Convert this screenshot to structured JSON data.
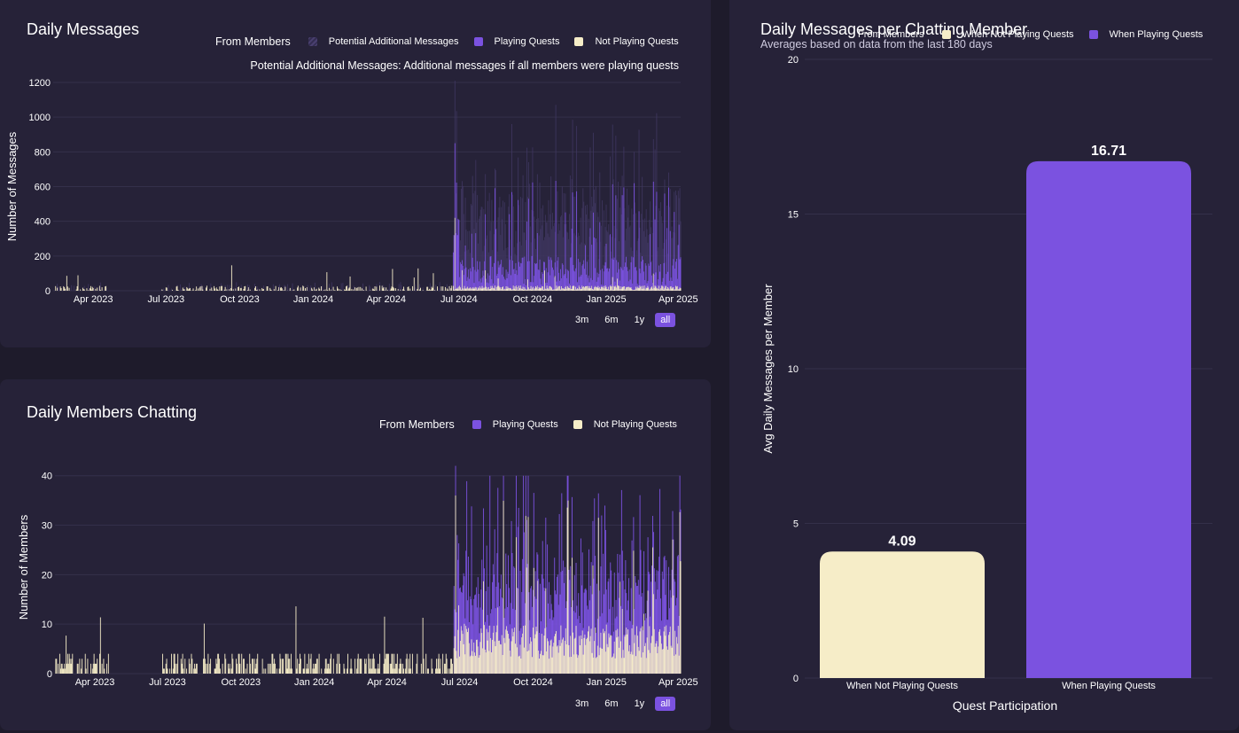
{
  "colors": {
    "playing": "#7b52e0",
    "not_playing": "#f6edc8",
    "potential": "#3f3660",
    "grid": "#34304a",
    "panel": "#262238"
  },
  "range_buttons": [
    "3m",
    "6m",
    "1y",
    "all"
  ],
  "range_active": "all",
  "chart_data": [
    {
      "type": "bar",
      "id": "daily_messages",
      "title": "Daily Messages",
      "legend_title": "From Members",
      "series": [
        {
          "name": "Potential Additional Messages",
          "color": "#3f3660"
        },
        {
          "name": "Playing Quests",
          "color": "#7b52e0"
        },
        {
          "name": "Not Playing Quests",
          "color": "#f6edc8"
        }
      ],
      "annotation": "Potential Additional Messages: Additional messages if all members were playing quests",
      "ylabel": "Number of Messages",
      "ylim": [
        0,
        1200
      ],
      "yticks": [
        0,
        200,
        400,
        600,
        800,
        1000,
        1200
      ],
      "xticks": [
        "Apr 2023",
        "Jul 2023",
        "Oct 2023",
        "Jan 2024",
        "Apr 2024",
        "Jul 2024",
        "Oct 2024",
        "Jan 2025",
        "Apr 2025"
      ],
      "xrange": [
        "2023-02-10",
        "2025-04-04"
      ],
      "peak_values": {
        "playing_max": 850,
        "potential_max": 1210,
        "not_playing_max": 420
      }
    },
    {
      "type": "bar",
      "id": "daily_members_chatting",
      "title": "Daily Members Chatting",
      "legend_title": "From Members",
      "series": [
        {
          "name": "Playing Quests",
          "color": "#7b52e0"
        },
        {
          "name": "Not Playing Quests",
          "color": "#f6edc8"
        }
      ],
      "ylabel": "Number of Members",
      "ylim": [
        0,
        43
      ],
      "yticks": [
        0,
        10,
        20,
        30,
        40
      ],
      "xticks": [
        "Apr 2023",
        "Jul 2023",
        "Oct 2023",
        "Jan 2024",
        "Apr 2024",
        "Jul 2024",
        "Oct 2024",
        "Jan 2025",
        "Apr 2025"
      ],
      "xrange": [
        "2023-02-10",
        "2025-04-04"
      ],
      "peak_values": {
        "playing_max": 42,
        "not_playing_max": 36
      }
    },
    {
      "type": "bar",
      "id": "daily_messages_per_member",
      "title": "Daily Messages per Chatting Member",
      "subtitle": "Averages based on data from the last 180 days",
      "legend_title": "From Members",
      "series": [
        {
          "name": "When Not Playing Quests",
          "color": "#f6edc8"
        },
        {
          "name": "When Playing Quests",
          "color": "#7b52e0"
        }
      ],
      "categories": [
        "When Not Playing Quests",
        "When Playing Quests"
      ],
      "values": [
        4.09,
        16.71
      ],
      "value_labels": [
        "4.09",
        "16.71"
      ],
      "xlabel": "Quest Participation",
      "ylabel": "Avg Daily Messages per Member",
      "ylim": [
        0,
        20
      ],
      "yticks": [
        0,
        5,
        10,
        15,
        20
      ]
    }
  ]
}
